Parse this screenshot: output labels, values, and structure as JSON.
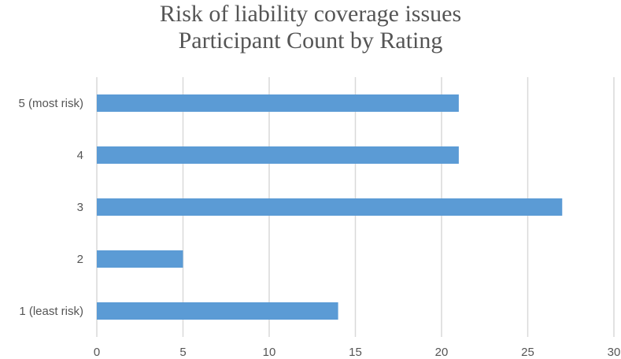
{
  "chart_data": {
    "type": "bar",
    "orientation": "horizontal",
    "title": [
      "Risk of liability coverage issues",
      "Participant Count by Rating"
    ],
    "categories": [
      "1 (least risk)",
      "2",
      "3",
      "4",
      "5 (most risk)"
    ],
    "values": [
      14,
      5,
      27,
      21,
      21
    ],
    "xlim": [
      0,
      30
    ],
    "xticks": [
      0,
      5,
      10,
      15,
      20,
      25,
      30
    ],
    "grid": true,
    "bar_color": "#5b9bd5",
    "grid_color": "#d9d9d9"
  }
}
